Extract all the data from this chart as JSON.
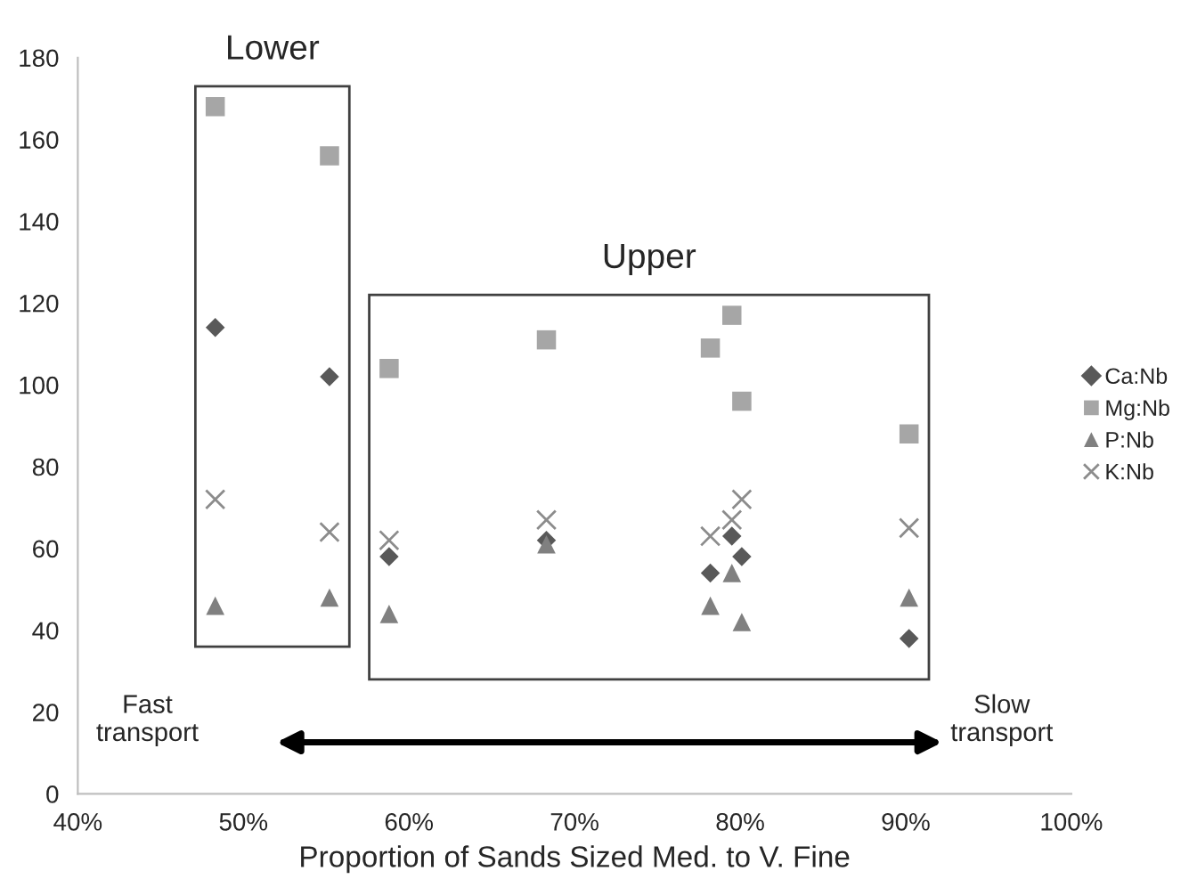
{
  "chart_data": {
    "type": "scatter",
    "xlabel": "Proportion of Sands Sized Med. to V. Fine",
    "x": [
      48.3,
      55.2,
      58.8,
      68.3,
      78.2,
      79.5,
      80.1,
      90.2
    ],
    "series": [
      {
        "name": "Ca:Nb",
        "color": "#595959",
        "marker": "diamond",
        "values": [
          114,
          102,
          58,
          62,
          54,
          63,
          58,
          38
        ]
      },
      {
        "name": "Mg:Nb",
        "color": "#a6a6a6",
        "marker": "square",
        "values": [
          168,
          156,
          104,
          111,
          109,
          117,
          96,
          88
        ]
      },
      {
        "name": "P:Nb",
        "color": "#808080",
        "marker": "triangle",
        "values": [
          46,
          48,
          44,
          61,
          46,
          54,
          42,
          48
        ]
      },
      {
        "name": "K:Nb",
        "color": "#8c8c8c",
        "marker": "cross",
        "values": [
          72,
          64,
          62,
          67,
          63,
          67,
          72,
          65
        ]
      }
    ],
    "xlim": [
      40,
      100
    ],
    "xticks": [
      {
        "value": 40,
        "label": "40%"
      },
      {
        "value": 50,
        "label": "50%"
      },
      {
        "value": 60,
        "label": "60%"
      },
      {
        "value": 70,
        "label": "70%"
      },
      {
        "value": 80,
        "label": "80%"
      },
      {
        "value": 90,
        "label": "90%"
      },
      {
        "value": 100,
        "label": "100%"
      }
    ],
    "ylim": [
      0,
      180
    ],
    "yticks": [
      0,
      20,
      40,
      60,
      80,
      100,
      120,
      140,
      160,
      180
    ],
    "grid": false,
    "legend": "right",
    "annotations": [
      "Lower",
      "Upper",
      "Fast\ntransport",
      "Slow\ntransport"
    ]
  }
}
